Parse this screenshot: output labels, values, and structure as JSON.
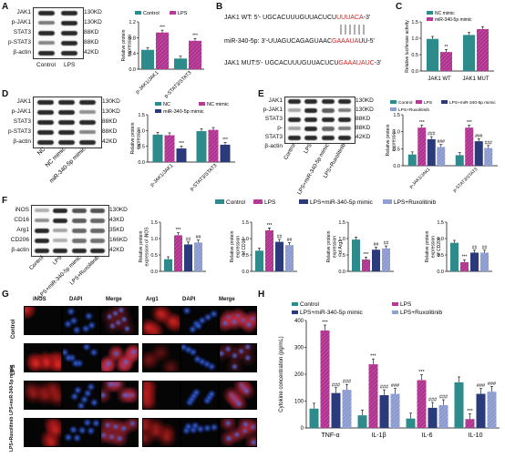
{
  "panels": {
    "A": {
      "label": "A",
      "blot_rows": [
        "JAK1",
        "p-JAK1",
        "STAT3",
        "p-STAT3",
        "β-actin"
      ],
      "kd": [
        "130KD",
        "130KD",
        "88KD",
        "88KD",
        "42KD"
      ],
      "lanes": [
        "Control",
        "LPS"
      ]
    },
    "B": {
      "label": "B",
      "wt_prefix": "JAK1 WT:  5'- UGCACUUUGUUACUCU",
      "wt_red": "UUUACA",
      "wt_suffix": "-3'",
      "mir_prefix": "miR-340-5p: 3'-UUAGUCAGAGUAAC",
      "mir_red": "GAAAUA",
      "mir_suffix": "UU-5'",
      "mut_prefix": "JAK1 MUT:5'- UGCACUUUGUUACUCU",
      "mut_red": "GAAAUAUC",
      "mut_suffix": "-3'"
    },
    "C": {
      "label": "C"
    },
    "D": {
      "label": "D",
      "blot_rows": [
        "JAK1",
        "p-JAK1",
        "STAT3",
        "p-STAT3",
        "β-actin"
      ],
      "kd": [
        "130KD",
        "130KD",
        "88KD",
        "88KD",
        "42KD"
      ],
      "lanes": [
        "NC",
        "NC mimic",
        "miR-340-5p mimic"
      ]
    },
    "E": {
      "label": "E",
      "blot_rows": [
        "JAK1",
        "p-JAK1",
        "STAT3",
        "p-STAT3",
        "β-actin"
      ],
      "kd": [
        "130KD",
        "130KD",
        "88KD",
        "88KD",
        "42KD"
      ],
      "lanes": [
        "Control",
        "LPS",
        "LPS+miR-340-5p mimic",
        "LPS+Ruxolitinib"
      ]
    },
    "F": {
      "label": "F",
      "blot_rows": [
        "iNOS",
        "CD16",
        "Arg1",
        "CD206",
        "β-actin"
      ],
      "kd": [
        "130KD",
        "43KD",
        "35KD",
        "166KD",
        "42KD"
      ],
      "lanes": [
        "Control",
        "LPS",
        "LPS+miR-340-5p mimic",
        "LPS+Ruxolitinib"
      ]
    },
    "G": {
      "label": "G",
      "cols": [
        "iNOS",
        "DAPI",
        "Merge",
        "Arg1",
        "DAPI",
        "Merge"
      ],
      "rows": [
        "Control",
        "LPS",
        "LPS+miR-340-5p mimic",
        "LPS+Ruxolitinib"
      ]
    },
    "H": {
      "label": "H"
    }
  },
  "colors": {
    "control": "#2e8b8b",
    "lps": "#b0308f",
    "mimic": "#2a3a7a",
    "rux": "#8a9ad0",
    "nc": "#2e8b8b",
    "ncmimic": "#b0308f",
    "mir": "#2a3a7a",
    "wt_mut_nc": "#2e8b8b",
    "wt_mut_mir": "#b0308f"
  },
  "chart_data": [
    {
      "id": "A",
      "type": "bar",
      "ylabel": "Relative protein expression",
      "ylim": [
        0,
        1.2
      ],
      "yticks": [
        "0.0",
        "0.4",
        "0.8",
        "1.2"
      ],
      "categories": [
        "p-JAK1/JAK1",
        "p-STAT3/STAT3"
      ],
      "series": [
        {
          "name": "Control",
          "values": [
            0.49,
            0.27
          ]
        },
        {
          "name": "LPS",
          "values": [
            0.93,
            0.72
          ]
        }
      ],
      "annotations": [
        {
          "series": 1,
          "cat": 0,
          "text": "***"
        },
        {
          "series": 1,
          "cat": 1,
          "text": "***"
        }
      ]
    },
    {
      "id": "C",
      "type": "bar",
      "ylabel": "Relative luciferase activity",
      "ylim": [
        0,
        1.5
      ],
      "yticks": [
        "0.0",
        "0.5",
        "1.0",
        "1.5"
      ],
      "categories": [
        "JAK1 WT",
        "JAK1 MUT"
      ],
      "series": [
        {
          "name": "NC mimic",
          "values": [
            0.98,
            1.1
          ]
        },
        {
          "name": "miR-340-5p mimic",
          "values": [
            0.58,
            1.28
          ]
        }
      ],
      "annotations": [
        {
          "series": 1,
          "cat": 0,
          "text": "**"
        }
      ]
    },
    {
      "id": "D",
      "type": "bar",
      "ylabel": "Relative protein expression",
      "ylim": [
        0,
        1.5
      ],
      "yticks": [
        "0.0",
        "0.5",
        "1.0",
        "1.5"
      ],
      "categories": [
        "p-JAK1/JAK1",
        "p-STAT3/STAT3"
      ],
      "series": [
        {
          "name": "NC",
          "values": [
            0.87,
            0.98
          ]
        },
        {
          "name": "NC mimic",
          "values": [
            0.85,
            1.02
          ]
        },
        {
          "name": "miR-340-5p mimic",
          "values": [
            0.43,
            0.55
          ]
        }
      ],
      "annotations": [
        {
          "series": 2,
          "cat": 0,
          "text": "***"
        },
        {
          "series": 2,
          "cat": 1,
          "text": "***"
        }
      ]
    },
    {
      "id": "E",
      "type": "bar",
      "ylabel": "Relative protein expression",
      "ylim": [
        0,
        1.5
      ],
      "yticks": [
        "0.0",
        "0.5",
        "1.0",
        "1.5"
      ],
      "categories": [
        "p-JAK1/JAK1",
        "p-STAT3/STAT3"
      ],
      "series": [
        {
          "name": "Control",
          "values": [
            0.33,
            0.31
          ]
        },
        {
          "name": "LPS",
          "values": [
            1.12,
            1.12
          ]
        },
        {
          "name": "LPS+miR-340-5p mimic",
          "values": [
            0.78,
            0.72
          ]
        },
        {
          "name": "LPS+Ruxolitinib",
          "values": [
            0.55,
            0.52
          ]
        }
      ],
      "annotations": [
        {
          "series": 1,
          "cat": 0,
          "text": "***"
        },
        {
          "series": 2,
          "cat": 0,
          "text": "###"
        },
        {
          "series": 3,
          "cat": 0,
          "text": "###"
        },
        {
          "series": 1,
          "cat": 1,
          "text": "***"
        },
        {
          "series": 2,
          "cat": 1,
          "text": "###"
        },
        {
          "series": 3,
          "cat": 1,
          "text": "###"
        }
      ]
    },
    {
      "id": "F1",
      "type": "bar",
      "ylabel": "Relative protein expression of iNOS",
      "ylim": [
        0,
        1.5
      ],
      "yticks": [
        "0.0",
        "0.5",
        "1.0",
        "1.5"
      ],
      "categories": [
        ""
      ],
      "series": [
        {
          "name": "Control",
          "values": [
            0.37
          ]
        },
        {
          "name": "LPS",
          "values": [
            1.1
          ]
        },
        {
          "name": "LPS+miR-340-5p mimic",
          "values": [
            0.82
          ]
        },
        {
          "name": "LPS+Ruxolitinib",
          "values": [
            0.88
          ]
        }
      ],
      "annotations": [
        {
          "series": 1,
          "cat": 0,
          "text": "***"
        },
        {
          "series": 2,
          "cat": 0,
          "text": "##"
        },
        {
          "series": 3,
          "cat": 0,
          "text": "##"
        }
      ]
    },
    {
      "id": "F2",
      "type": "bar",
      "ylabel": "Relative protein expression of CD16",
      "ylim": [
        0,
        1.5
      ],
      "yticks": [
        "0.0",
        "0.5",
        "1.0",
        "1.5"
      ],
      "categories": [
        ""
      ],
      "series": [
        {
          "name": "Control",
          "values": [
            0.63
          ]
        },
        {
          "name": "LPS",
          "values": [
            1.25
          ]
        },
        {
          "name": "LPS+miR-340-5p mimic",
          "values": [
            0.9
          ]
        },
        {
          "name": "LPS+Ruxolitinib",
          "values": [
            0.8
          ]
        }
      ],
      "annotations": [
        {
          "series": 1,
          "cat": 0,
          "text": "***"
        },
        {
          "series": 2,
          "cat": 0,
          "text": "##"
        },
        {
          "series": 3,
          "cat": 0,
          "text": "##"
        }
      ]
    },
    {
      "id": "F3",
      "type": "bar",
      "ylabel": "Relative protein expression of Arg1",
      "ylim": [
        0,
        1.5
      ],
      "yticks": [
        "0.0",
        "0.5",
        "1.0",
        "1.5"
      ],
      "categories": [
        ""
      ],
      "series": [
        {
          "name": "Control",
          "values": [
            0.97
          ]
        },
        {
          "name": "LPS",
          "values": [
            0.36
          ]
        },
        {
          "name": "LPS+miR-340-5p mimic",
          "values": [
            0.66
          ]
        },
        {
          "name": "LPS+Ruxolitinib",
          "values": [
            0.7
          ]
        }
      ],
      "annotations": [
        {
          "series": 1,
          "cat": 0,
          "text": "***"
        },
        {
          "series": 2,
          "cat": 0,
          "text": "##"
        },
        {
          "series": 3,
          "cat": 0,
          "text": "##"
        }
      ]
    },
    {
      "id": "F4",
      "type": "bar",
      "ylabel": "Relative protein expression of CD206",
      "ylim": [
        0,
        1.5
      ],
      "yticks": [
        "0.0",
        "0.5",
        "1.0",
        "1.5"
      ],
      "categories": [
        ""
      ],
      "series": [
        {
          "name": "Control",
          "values": [
            0.87
          ]
        },
        {
          "name": "LPS",
          "values": [
            0.28
          ]
        },
        {
          "name": "LPS+miR-340-5p mimic",
          "values": [
            0.57
          ]
        },
        {
          "name": "LPS+Ruxolitinib",
          "values": [
            0.57
          ]
        }
      ],
      "annotations": [
        {
          "series": 1,
          "cat": 0,
          "text": "***"
        },
        {
          "series": 2,
          "cat": 0,
          "text": "##"
        },
        {
          "series": 3,
          "cat": 0,
          "text": "##"
        }
      ]
    },
    {
      "id": "H",
      "type": "bar",
      "ylabel": "Cytokine concentration (pg/mL)",
      "ylim": [
        0,
        400
      ],
      "yticks": [
        "0",
        "100",
        "200",
        "300",
        "400"
      ],
      "categories": [
        "TNF-α",
        "IL-1β",
        "IL-6",
        "IL-10"
      ],
      "series": [
        {
          "name": "Control",
          "values": [
            72,
            47,
            35,
            170
          ]
        },
        {
          "name": "LPS",
          "values": [
            363,
            237,
            178,
            33
          ]
        },
        {
          "name": "LPS+miR-340-5p mimic",
          "values": [
            130,
            122,
            75,
            127
          ]
        },
        {
          "name": "LPS+Ruxolitinib",
          "values": [
            142,
            127,
            85,
            135
          ]
        }
      ],
      "annotations": [
        {
          "series": 1,
          "cat": 0,
          "text": "***"
        },
        {
          "series": 2,
          "cat": 0,
          "text": "###"
        },
        {
          "series": 3,
          "cat": 0,
          "text": "###"
        },
        {
          "series": 1,
          "cat": 1,
          "text": "***"
        },
        {
          "series": 2,
          "cat": 1,
          "text": "###"
        },
        {
          "series": 3,
          "cat": 1,
          "text": "###"
        },
        {
          "series": 1,
          "cat": 2,
          "text": "***"
        },
        {
          "series": 2,
          "cat": 2,
          "text": "###"
        },
        {
          "series": 3,
          "cat": 2,
          "text": "###"
        },
        {
          "series": 1,
          "cat": 3,
          "text": "***"
        },
        {
          "series": 2,
          "cat": 3,
          "text": "###"
        },
        {
          "series": 3,
          "cat": 3,
          "text": "###"
        }
      ]
    }
  ]
}
